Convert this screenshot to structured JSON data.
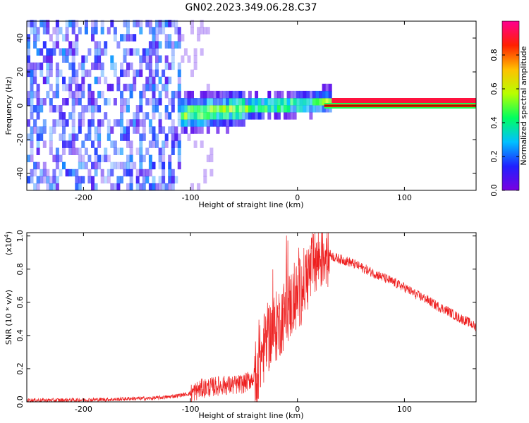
{
  "title": "GN02.2023.349.06.28.C37",
  "chart_data": [
    {
      "type": "heatmap",
      "xlabel": "Height of straight line (km)",
      "ylabel": "Frequency (Hz)",
      "xlim": [
        -253,
        167
      ],
      "ylim": [
        -50,
        50
      ],
      "xticks": [
        "-200",
        "-100",
        "0",
        "100"
      ],
      "xtick_values": [
        -200,
        -100,
        0,
        100
      ],
      "yticks": [
        "-40",
        "-20",
        "0",
        "20",
        "40"
      ],
      "ytick_values": [
        -40,
        -20,
        0,
        20,
        40
      ],
      "colorbar": {
        "label": "Normalized spectral amplitude",
        "ticks": [
          "0.0",
          "0.2",
          "0.4",
          "0.6",
          "0.8"
        ],
        "tick_values": [
          0.0,
          0.2,
          0.4,
          0.6,
          0.8
        ],
        "range": [
          0,
          1
        ],
        "colormap": [
          "#7a00e0",
          "#2020ff",
          "#00c0ff",
          "#00ff60",
          "#b8ff00",
          "#ffc000",
          "#ff2000",
          "#ff0090"
        ]
      },
      "features": [
        {
          "region": "noise",
          "x_range": [
            -253,
            -100
          ],
          "freq_range": [
            -50,
            50
          ],
          "amplitude": 0.1
        },
        {
          "region": "transition",
          "x_range": [
            -110,
            30
          ],
          "freq_center": [
            -7,
            0
          ],
          "amplitude": 0.45
        },
        {
          "region": "tone",
          "x_range": [
            25,
            167
          ],
          "freq": 0,
          "amplitude": 1.0
        }
      ]
    },
    {
      "type": "line",
      "xlabel": "Height of straight line (km)",
      "ylabel": "SNR (10 * v/v)",
      "y_scale_label": "(x10",
      "y_scale_exp": "4",
      "xlim": [
        -253,
        167
      ],
      "ylim": [
        0,
        1.02
      ],
      "xticks": [
        "-200",
        "-100",
        "0",
        "100"
      ],
      "xtick_values": [
        -200,
        -100,
        0,
        100
      ],
      "yticks": [
        "0.0",
        "0.2",
        "0.4",
        "0.6",
        "0.8",
        "1.0"
      ],
      "ytick_values": [
        0.0,
        0.2,
        0.4,
        0.6,
        0.8,
        1.0
      ],
      "series": [
        {
          "color": "#ee2020",
          "x": [
            -253,
            -230,
            -200,
            -170,
            -155,
            -140,
            -120,
            -100,
            -90,
            -80,
            -70,
            -60,
            -50,
            -40,
            -35,
            -30,
            -25,
            -20,
            -15,
            -10,
            -5,
            0,
            5,
            10,
            15,
            20,
            25,
            30,
            35,
            40,
            50,
            60,
            70,
            80,
            90,
            100,
            110,
            120,
            130,
            140,
            150,
            160,
            167
          ],
          "y": [
            0.01,
            0.01,
            0.012,
            0.015,
            0.02,
            0.02,
            0.03,
            0.05,
            0.08,
            0.09,
            0.1,
            0.1,
            0.11,
            0.15,
            0.25,
            0.35,
            0.42,
            0.45,
            0.5,
            0.55,
            0.6,
            0.63,
            0.7,
            0.76,
            0.82,
            0.87,
            0.9,
            0.89,
            0.87,
            0.86,
            0.84,
            0.81,
            0.78,
            0.75,
            0.72,
            0.69,
            0.65,
            0.62,
            0.58,
            0.55,
            0.51,
            0.48,
            0.45
          ]
        }
      ]
    }
  ]
}
